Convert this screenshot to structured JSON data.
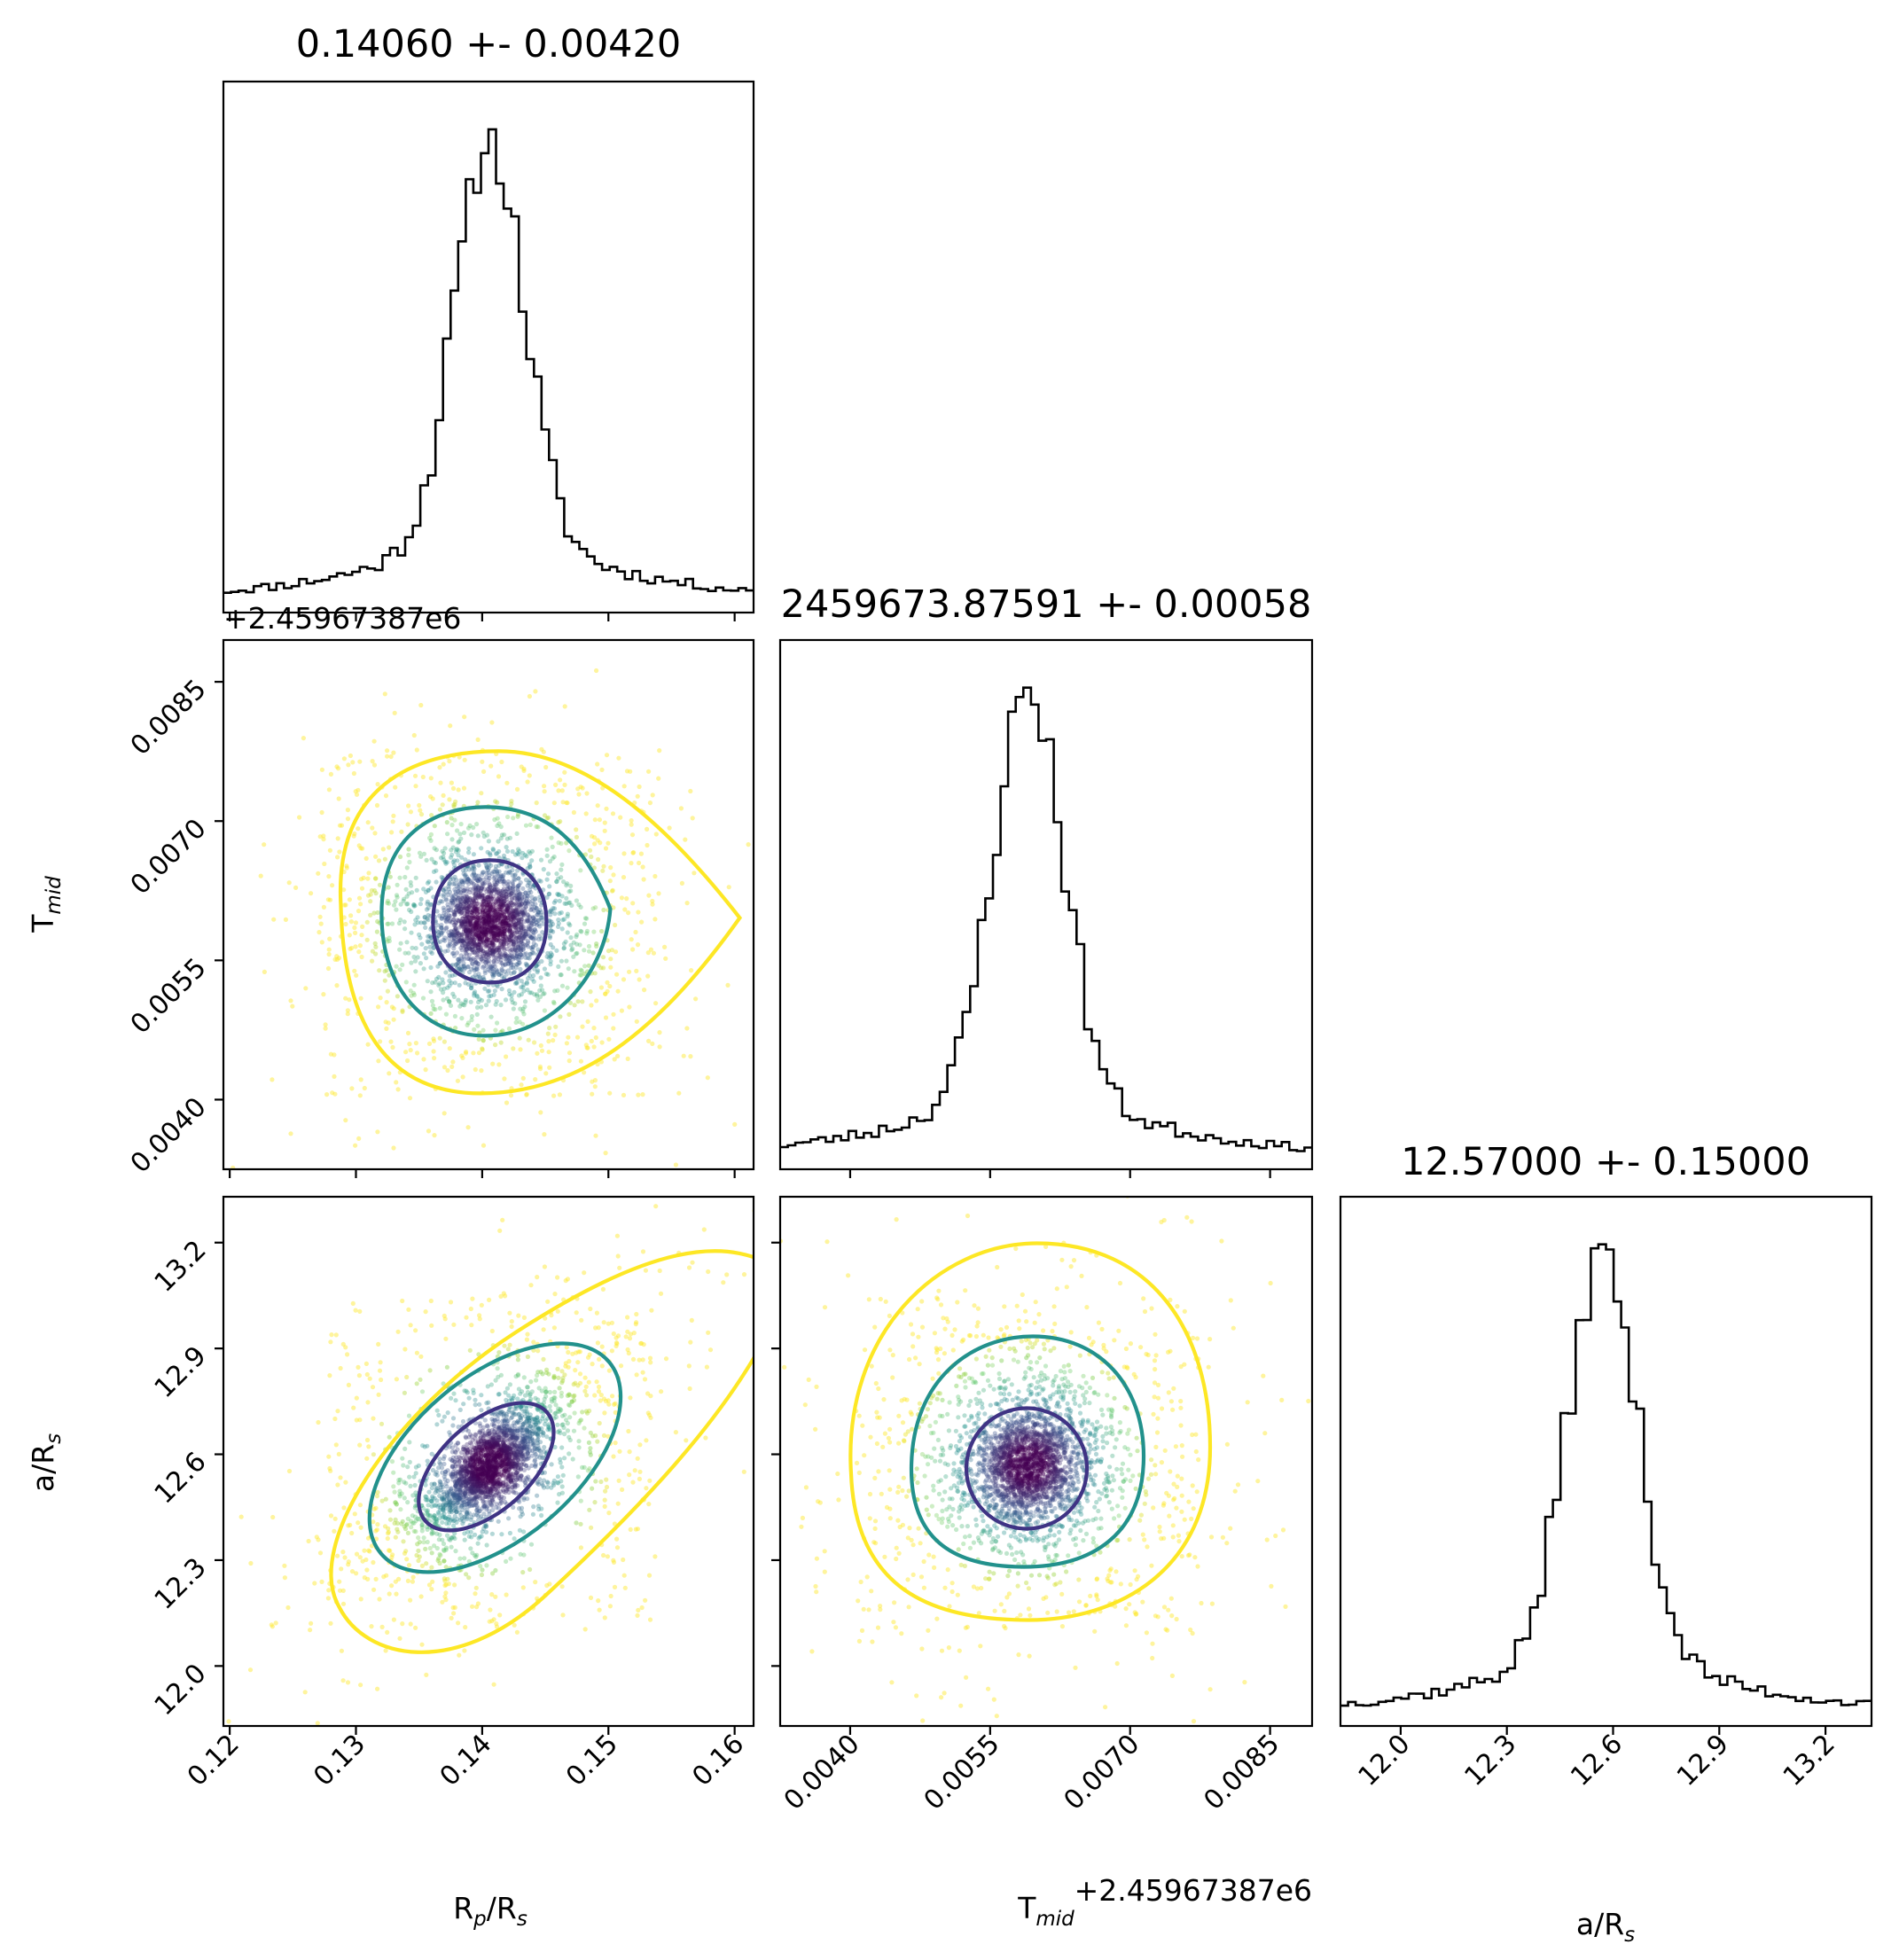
{
  "chart_data": [
    {
      "type": "histogram",
      "panel": "Rp-Rs-histogram",
      "title": "0.14060 +- 0.00420",
      "param": "R_p/R_s",
      "xlim": [
        0.1195,
        0.1615
      ],
      "peak": 0.1406,
      "sigma": 0.0042
    },
    {
      "type": "scatter",
      "panel": "Tmid-vs-Rp-Rs",
      "x_param": "R_p/R_s",
      "y_param": "T_mid",
      "xlim": [
        0.1195,
        0.1615
      ],
      "ylim": [
        0.00325,
        0.00895
      ],
      "ylabel": "T",
      "ylabel_sub": "mid",
      "y_offset": "+2.45967387e6",
      "yticks": [
        "0.0040",
        "0.0055",
        "0.0070",
        "0.0085"
      ],
      "ytick_values": [
        0.004,
        0.0055,
        0.007,
        0.0085
      ],
      "center": [
        0.1406,
        0.00591
      ]
    },
    {
      "type": "histogram",
      "panel": "Tmid-histogram",
      "title": "2459673.87591 +- 0.00058",
      "param": "T_mid",
      "xlim": [
        0.00325,
        0.00895
      ],
      "peak": 0.00591,
      "sigma": 0.00058
    },
    {
      "type": "scatter",
      "panel": "a-Rs-vs-Rp-Rs",
      "x_param": "R_p/R_s",
      "y_param": "a/R_s",
      "xlim": [
        0.1195,
        0.1615
      ],
      "ylim": [
        11.83,
        13.33
      ],
      "xlabel": "R",
      "xlabel_sub": "p",
      "xlabel_tail": "/R",
      "xlabel_sub2": "s",
      "ylabel": "a/R",
      "ylabel_sub": "s",
      "xticks": [
        "0.12",
        "0.13",
        "0.14",
        "0.15",
        "0.16"
      ],
      "xtick_values": [
        0.12,
        0.13,
        0.14,
        0.15,
        0.16
      ],
      "yticks": [
        "12.0",
        "12.3",
        "12.6",
        "12.9",
        "13.2"
      ],
      "ytick_values": [
        12.0,
        12.3,
        12.6,
        12.9,
        13.2
      ],
      "center": [
        0.1406,
        12.57
      ],
      "correlation": 0.7
    },
    {
      "type": "scatter",
      "panel": "a-Rs-vs-Tmid",
      "x_param": "T_mid",
      "y_param": "a/R_s",
      "xlim": [
        0.00325,
        0.00895
      ],
      "ylim": [
        11.83,
        13.33
      ],
      "xlabel": "T",
      "xlabel_sub": "mid",
      "x_offset": "+2.45967387e6",
      "xticks": [
        "0.0040",
        "0.0055",
        "0.0070",
        "0.0085"
      ],
      "xtick_values": [
        0.004,
        0.0055,
        0.007,
        0.0085
      ],
      "center": [
        0.00591,
        12.57
      ]
    },
    {
      "type": "histogram",
      "panel": "a-Rs-histogram",
      "title": "12.57000 +- 0.15000",
      "param": "a/R_s",
      "xlim": [
        11.83,
        13.33
      ],
      "peak": 12.57,
      "sigma": 0.15,
      "xlabel": "a/R",
      "xlabel_sub": "s",
      "xticks": [
        "12.0",
        "12.3",
        "12.6",
        "12.9",
        "13.2"
      ],
      "xtick_values": [
        12.0,
        12.3,
        12.6,
        12.9,
        13.2
      ]
    }
  ],
  "colors": {
    "contour_inner": "#3f3384",
    "contour_middle": "#22918c",
    "contour_outer": "#fde725",
    "point_core": "#440154",
    "histogram": "#000000"
  }
}
